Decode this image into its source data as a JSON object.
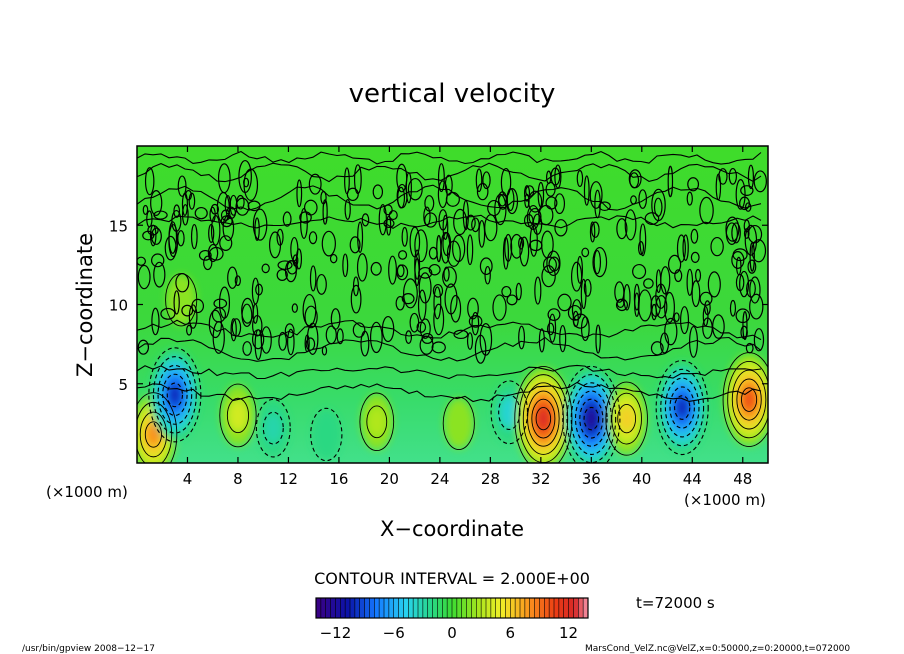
{
  "chart_data": {
    "type": "heatmap",
    "title": "vertical velocity",
    "xlabel": "X−coordinate",
    "ylabel": "Z−coordinate",
    "x_unit": "(×1000 m)",
    "y_unit": "(×1000 m)",
    "xlim": [
      0,
      50
    ],
    "ylim": [
      0,
      20
    ],
    "x_ticks": [
      4,
      8,
      12,
      16,
      20,
      24,
      28,
      32,
      36,
      40,
      44,
      48
    ],
    "x_tick_labels": [
      "4",
      "8",
      "12",
      "16",
      "20",
      "24",
      "28",
      "32",
      "36",
      "40",
      "44",
      "48"
    ],
    "y_ticks": [
      5,
      10,
      15
    ],
    "y_tick_labels": [
      "5",
      "10",
      "15"
    ],
    "contour_interval_label": "CONTOUR INTERVAL = 2.000E+00",
    "time_label": "t=72000 s",
    "colorbar": {
      "range": [
        -14,
        14
      ],
      "ticks": [
        -12,
        -6,
        0,
        6,
        12
      ],
      "tick_labels": [
        "−12",
        "−6",
        "0",
        "6",
        "12"
      ]
    },
    "features": [
      {
        "x": 1.3,
        "z": 1.8,
        "value": 8
      },
      {
        "x": 3.0,
        "z": 4.3,
        "value": -10
      },
      {
        "x": 3.5,
        "z": 10.3,
        "value": 2
      },
      {
        "x": 8.0,
        "z": 3.0,
        "value": 4
      },
      {
        "x": 10.8,
        "z": 2.2,
        "value": -3
      },
      {
        "x": 15.0,
        "z": 1.8,
        "value": -2
      },
      {
        "x": 19.0,
        "z": 2.6,
        "value": 3
      },
      {
        "x": 25.5,
        "z": 2.5,
        "value": 2
      },
      {
        "x": 29.5,
        "z": 3.2,
        "value": -4
      },
      {
        "x": 32.2,
        "z": 2.8,
        "value": 12
      },
      {
        "x": 36.0,
        "z": 2.8,
        "value": -12
      },
      {
        "x": 38.8,
        "z": 2.8,
        "value": 6
      },
      {
        "x": 43.2,
        "z": 3.5,
        "value": -10
      },
      {
        "x": 48.5,
        "z": 4.0,
        "value": 10
      }
    ]
  },
  "footer": {
    "left": "/usr/bin/gpview   2008−12−17",
    "right": "MarsCond_VelZ.nc@VelZ,x=0:50000,z=0:20000,t=072000"
  }
}
